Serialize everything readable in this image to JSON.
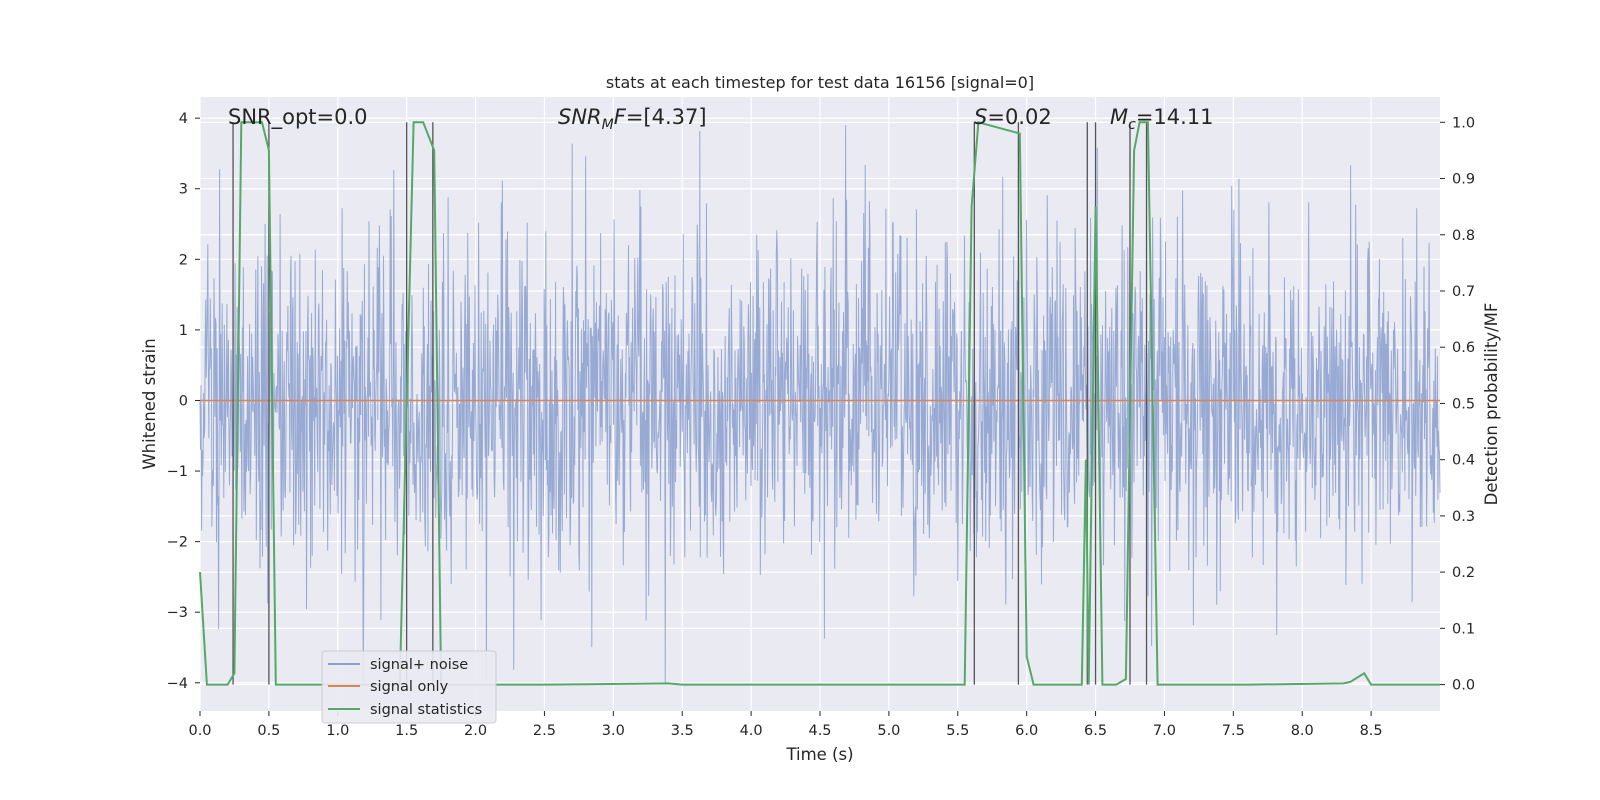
{
  "chart_data": {
    "type": "line",
    "title": "stats at each timestep for test data 16156 [signal=0]",
    "xlabel": "Time (s)",
    "ylabel": "Whitened strain",
    "y2label": "Detection probability/MF",
    "xlim": [
      0.0,
      9.0
    ],
    "ylim": [
      -4.4,
      4.3
    ],
    "y2lim": [
      -0.047,
      1.045
    ],
    "xticks": [
      "0.0",
      "0.5",
      "1.0",
      "1.5",
      "2.0",
      "2.5",
      "3.0",
      "3.5",
      "4.0",
      "4.5",
      "5.0",
      "5.5",
      "6.0",
      "6.5",
      "7.0",
      "7.5",
      "8.0",
      "8.5"
    ],
    "yticks": [
      "4",
      "3",
      "2",
      "1",
      "0",
      "−1",
      "−2",
      "−3",
      "−4"
    ],
    "y2ticks": [
      "1.0",
      "0.9",
      "0.8",
      "0.7",
      "0.6",
      "0.5",
      "0.4",
      "0.3",
      "0.2",
      "0.1",
      "0.0"
    ],
    "grid": true,
    "legend_position": "lower-left",
    "annotations": [
      {
        "text": "SNR_opt=0.0",
        "x": 0.2
      },
      {
        "text": "SNR_MF=[4.37]",
        "x": 2.6
      },
      {
        "text": "S=0.02",
        "x": 5.6
      },
      {
        "text": "M_c=14.11",
        "x": 6.6
      }
    ],
    "series": [
      {
        "name": "signal+ noise",
        "axis": "left",
        "color": "#8a9fce",
        "description": "whitened strain noise, approx. Gaussian, amplitude envelope about ±3.5",
        "noise_std": 1.0
      },
      {
        "name": "signal only",
        "axis": "left",
        "color": "#dd8452",
        "values_constant": 0.0
      },
      {
        "name": "signal statistics",
        "axis": "right",
        "color": "#55a868",
        "x": [
          0.0,
          0.05,
          0.2,
          0.25,
          0.3,
          0.45,
          0.5,
          0.55,
          1.45,
          1.5,
          1.55,
          1.62,
          1.7,
          1.75,
          2.5,
          3.4,
          3.5,
          5.55,
          5.6,
          5.65,
          5.95,
          6.0,
          6.05,
          6.4,
          6.43,
          6.45,
          6.5,
          6.55,
          6.65,
          6.72,
          6.78,
          6.82,
          6.88,
          6.95,
          7.6,
          8.3,
          8.35,
          8.45,
          8.5,
          9.0
        ],
        "values": [
          0.2,
          0.0,
          0.0,
          0.02,
          1.0,
          1.0,
          0.95,
          0.0,
          0.0,
          0.5,
          1.0,
          1.0,
          0.95,
          0.0,
          0.0,
          0.002,
          0.0,
          0.0,
          0.85,
          1.0,
          0.98,
          0.05,
          0.0,
          0.0,
          0.4,
          0.0,
          0.85,
          0.0,
          0.0,
          0.01,
          0.95,
          1.0,
          1.0,
          0.0,
          0.0,
          0.002,
          0.005,
          0.02,
          0.0,
          0.0
        ]
      }
    ],
    "vertical_markers_x": [
      0.24,
      0.5,
      1.5,
      1.69,
      5.62,
      5.94,
      6.44,
      6.5,
      6.75,
      6.87
    ]
  }
}
